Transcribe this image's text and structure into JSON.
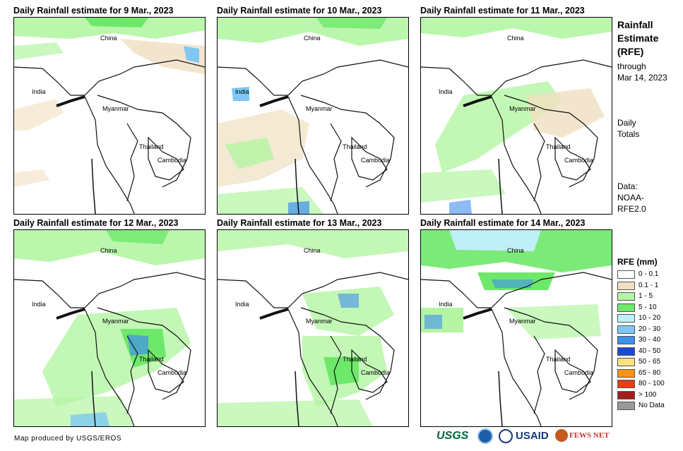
{
  "panels": [
    {
      "title": "Daily Rainfall estimate for 9 Mar., 2023"
    },
    {
      "title": "Daily Rainfall estimate for 10 Mar., 2023"
    },
    {
      "title": "Daily Rainfall estimate for 11 Mar., 2023"
    },
    {
      "title": "Daily Rainfall estimate for 12 Mar., 2023"
    },
    {
      "title": "Daily Rainfall estimate for 13 Mar., 2023"
    },
    {
      "title": "Daily Rainfall estimate for 14 Mar., 2023"
    }
  ],
  "places": {
    "china": "China",
    "india": "India",
    "myanmar": "Myanmar",
    "thailand": "Thailand",
    "cambodia": "Cambodia"
  },
  "side": {
    "title_line1": "Rainfall",
    "title_line2": "Estimate",
    "title_line3": "(RFE)",
    "through_line1": "through",
    "through_line2": "Mar 14, 2023",
    "totals_line1": "Daily",
    "totals_line2": "Totals",
    "data_line1": "Data:",
    "data_line2": "NOAA-",
    "data_line3": "RFE2.0"
  },
  "legend": {
    "title": "RFE (mm)",
    "items": [
      {
        "label": "0 - 0.1",
        "color": "#ffffff"
      },
      {
        "label": "0.1 - 1",
        "color": "#f0dfc0"
      },
      {
        "label": "1 - 5",
        "color": "#b4f5a4"
      },
      {
        "label": "5 - 10",
        "color": "#6ee86a"
      },
      {
        "label": "10 - 20",
        "color": "#bfeff7"
      },
      {
        "label": "20 - 30",
        "color": "#7ec8f3"
      },
      {
        "label": "30 - 40",
        "color": "#3f8fee"
      },
      {
        "label": "40 - 50",
        "color": "#1b48d6"
      },
      {
        "label": "50 - 65",
        "color": "#f7e27c"
      },
      {
        "label": "65 - 80",
        "color": "#f79410"
      },
      {
        "label": "80 - 100",
        "color": "#e83f10"
      },
      {
        "label": "> 100",
        "color": "#a41e1e"
      },
      {
        "label": "No Data",
        "color": "#999999"
      }
    ]
  },
  "credit": "Map produced by USGS/EROS",
  "logos": {
    "usgs": "USGS",
    "usaid": "USAID",
    "fews": "FEWS NET"
  }
}
